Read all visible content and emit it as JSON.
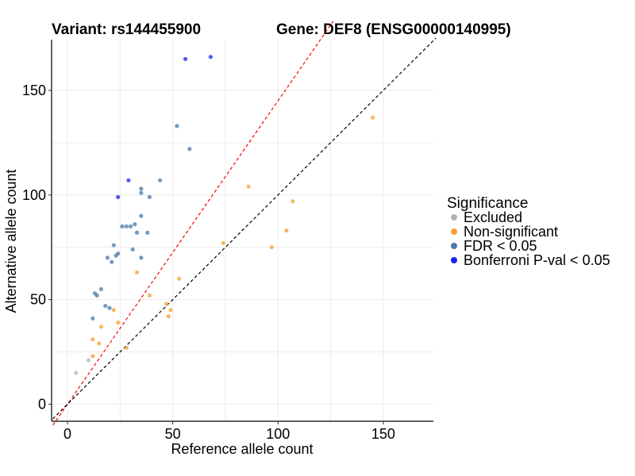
{
  "header": {
    "variant_text": "Variant: rs144455900",
    "gene_text": "Gene: DEF8 (ENSG00000140995)"
  },
  "colors": {
    "Excluded": "#b3b3b3",
    "Non-significant": "#f5a030",
    "FDR < 0.05": "#4a78a8",
    "Bonferroni P-val < 0.05": "#1a22ee",
    "red_line": "#ff0000",
    "black_line": "#000000",
    "grid": "#ebebeb"
  },
  "chart_data": {
    "type": "scatter",
    "title": "Variant: rs144455900    Gene: DEF8 (ENSG00000140995)",
    "xlabel": "Reference allele count",
    "ylabel": "Alternative allele count",
    "xlim": [
      -7,
      175
    ],
    "ylim": [
      -8,
      175
    ],
    "xticks": [
      0,
      50,
      100,
      150
    ],
    "yticks": [
      0,
      50,
      100,
      150
    ],
    "grid": true,
    "legend": {
      "title": "Significance",
      "position": "right",
      "entries": [
        "Excluded",
        "Non-significant",
        "FDR < 0.05",
        "Bonferroni P-val < 0.05"
      ]
    },
    "reference_lines": [
      {
        "name": "red-diagonal",
        "slope": 1.45,
        "intercept": 0,
        "style": "dashed",
        "color": "red"
      },
      {
        "name": "black-diagonal",
        "slope": 1.0,
        "intercept": 0,
        "style": "dashed",
        "color": "black"
      }
    ],
    "series": [
      {
        "name": "Excluded",
        "points": [
          [
            4,
            15
          ],
          [
            10,
            21
          ]
        ]
      },
      {
        "name": "Non-significant",
        "points": [
          [
            12,
            23
          ],
          [
            12,
            31
          ],
          [
            15,
            29
          ],
          [
            16,
            37
          ],
          [
            22,
            45
          ],
          [
            24,
            39
          ],
          [
            28,
            27
          ],
          [
            33,
            63
          ],
          [
            39,
            52
          ],
          [
            47,
            48
          ],
          [
            48,
            42
          ],
          [
            49,
            45
          ],
          [
            53,
            60
          ],
          [
            74,
            77
          ],
          [
            86,
            104
          ],
          [
            97,
            75
          ],
          [
            104,
            83
          ],
          [
            107,
            97
          ],
          [
            145,
            137
          ]
        ]
      },
      {
        "name": "FDR < 0.05",
        "points": [
          [
            12,
            41
          ],
          [
            13,
            53
          ],
          [
            14,
            52
          ],
          [
            16,
            55
          ],
          [
            18,
            47
          ],
          [
            19,
            70
          ],
          [
            20,
            46
          ],
          [
            21,
            68
          ],
          [
            22,
            76
          ],
          [
            23,
            71
          ],
          [
            24,
            72
          ],
          [
            26,
            85
          ],
          [
            28,
            85
          ],
          [
            30,
            85
          ],
          [
            31,
            74
          ],
          [
            32,
            86
          ],
          [
            33,
            82
          ],
          [
            35,
            70
          ],
          [
            35,
            90
          ],
          [
            35,
            101
          ],
          [
            35,
            103
          ],
          [
            38,
            82
          ],
          [
            39,
            99
          ],
          [
            44,
            107
          ],
          [
            52,
            133
          ],
          [
            58,
            122
          ]
        ]
      },
      {
        "name": "Bonferroni P-val < 0.05",
        "points": [
          [
            24,
            99
          ],
          [
            29,
            107
          ],
          [
            56,
            165
          ],
          [
            68,
            166
          ]
        ]
      }
    ]
  }
}
